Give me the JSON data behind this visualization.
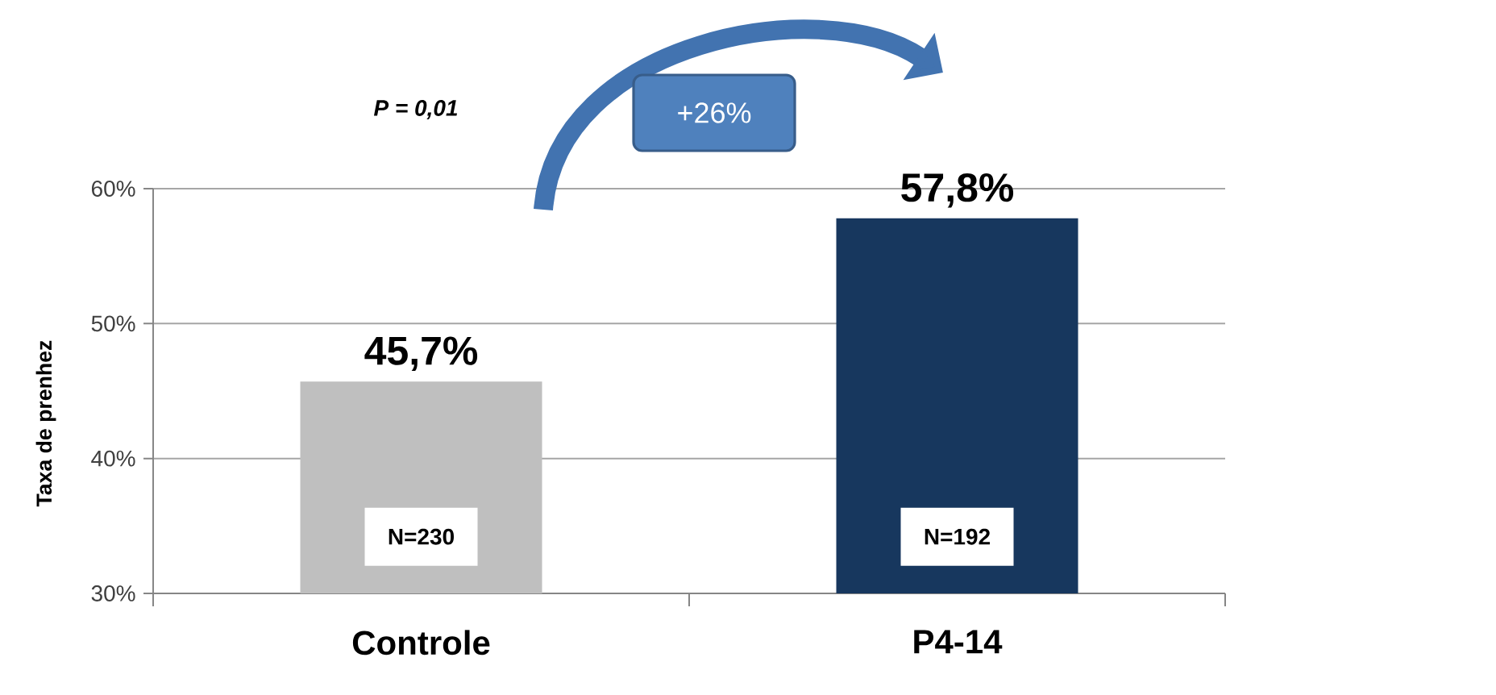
{
  "chart_data": {
    "type": "bar",
    "ylabel": "Taxa de prenhez",
    "categories": [
      "Controle",
      "P4-14"
    ],
    "values": [
      45.7,
      57.8
    ],
    "colors": [
      "#bfbfbf",
      "#17375e"
    ],
    "value_labels": [
      "45,7%",
      "57,8%"
    ],
    "ylim": [
      30,
      60
    ],
    "yticks": [
      {
        "value": 30,
        "label": "30%"
      },
      {
        "value": 40,
        "label": "40%"
      },
      {
        "value": 50,
        "label": "50%"
      },
      {
        "value": 60,
        "label": "60%"
      }
    ],
    "grid": "y",
    "annotations": [
      "P = 0,01",
      "+26%",
      "N=230",
      "N=192"
    ]
  }
}
